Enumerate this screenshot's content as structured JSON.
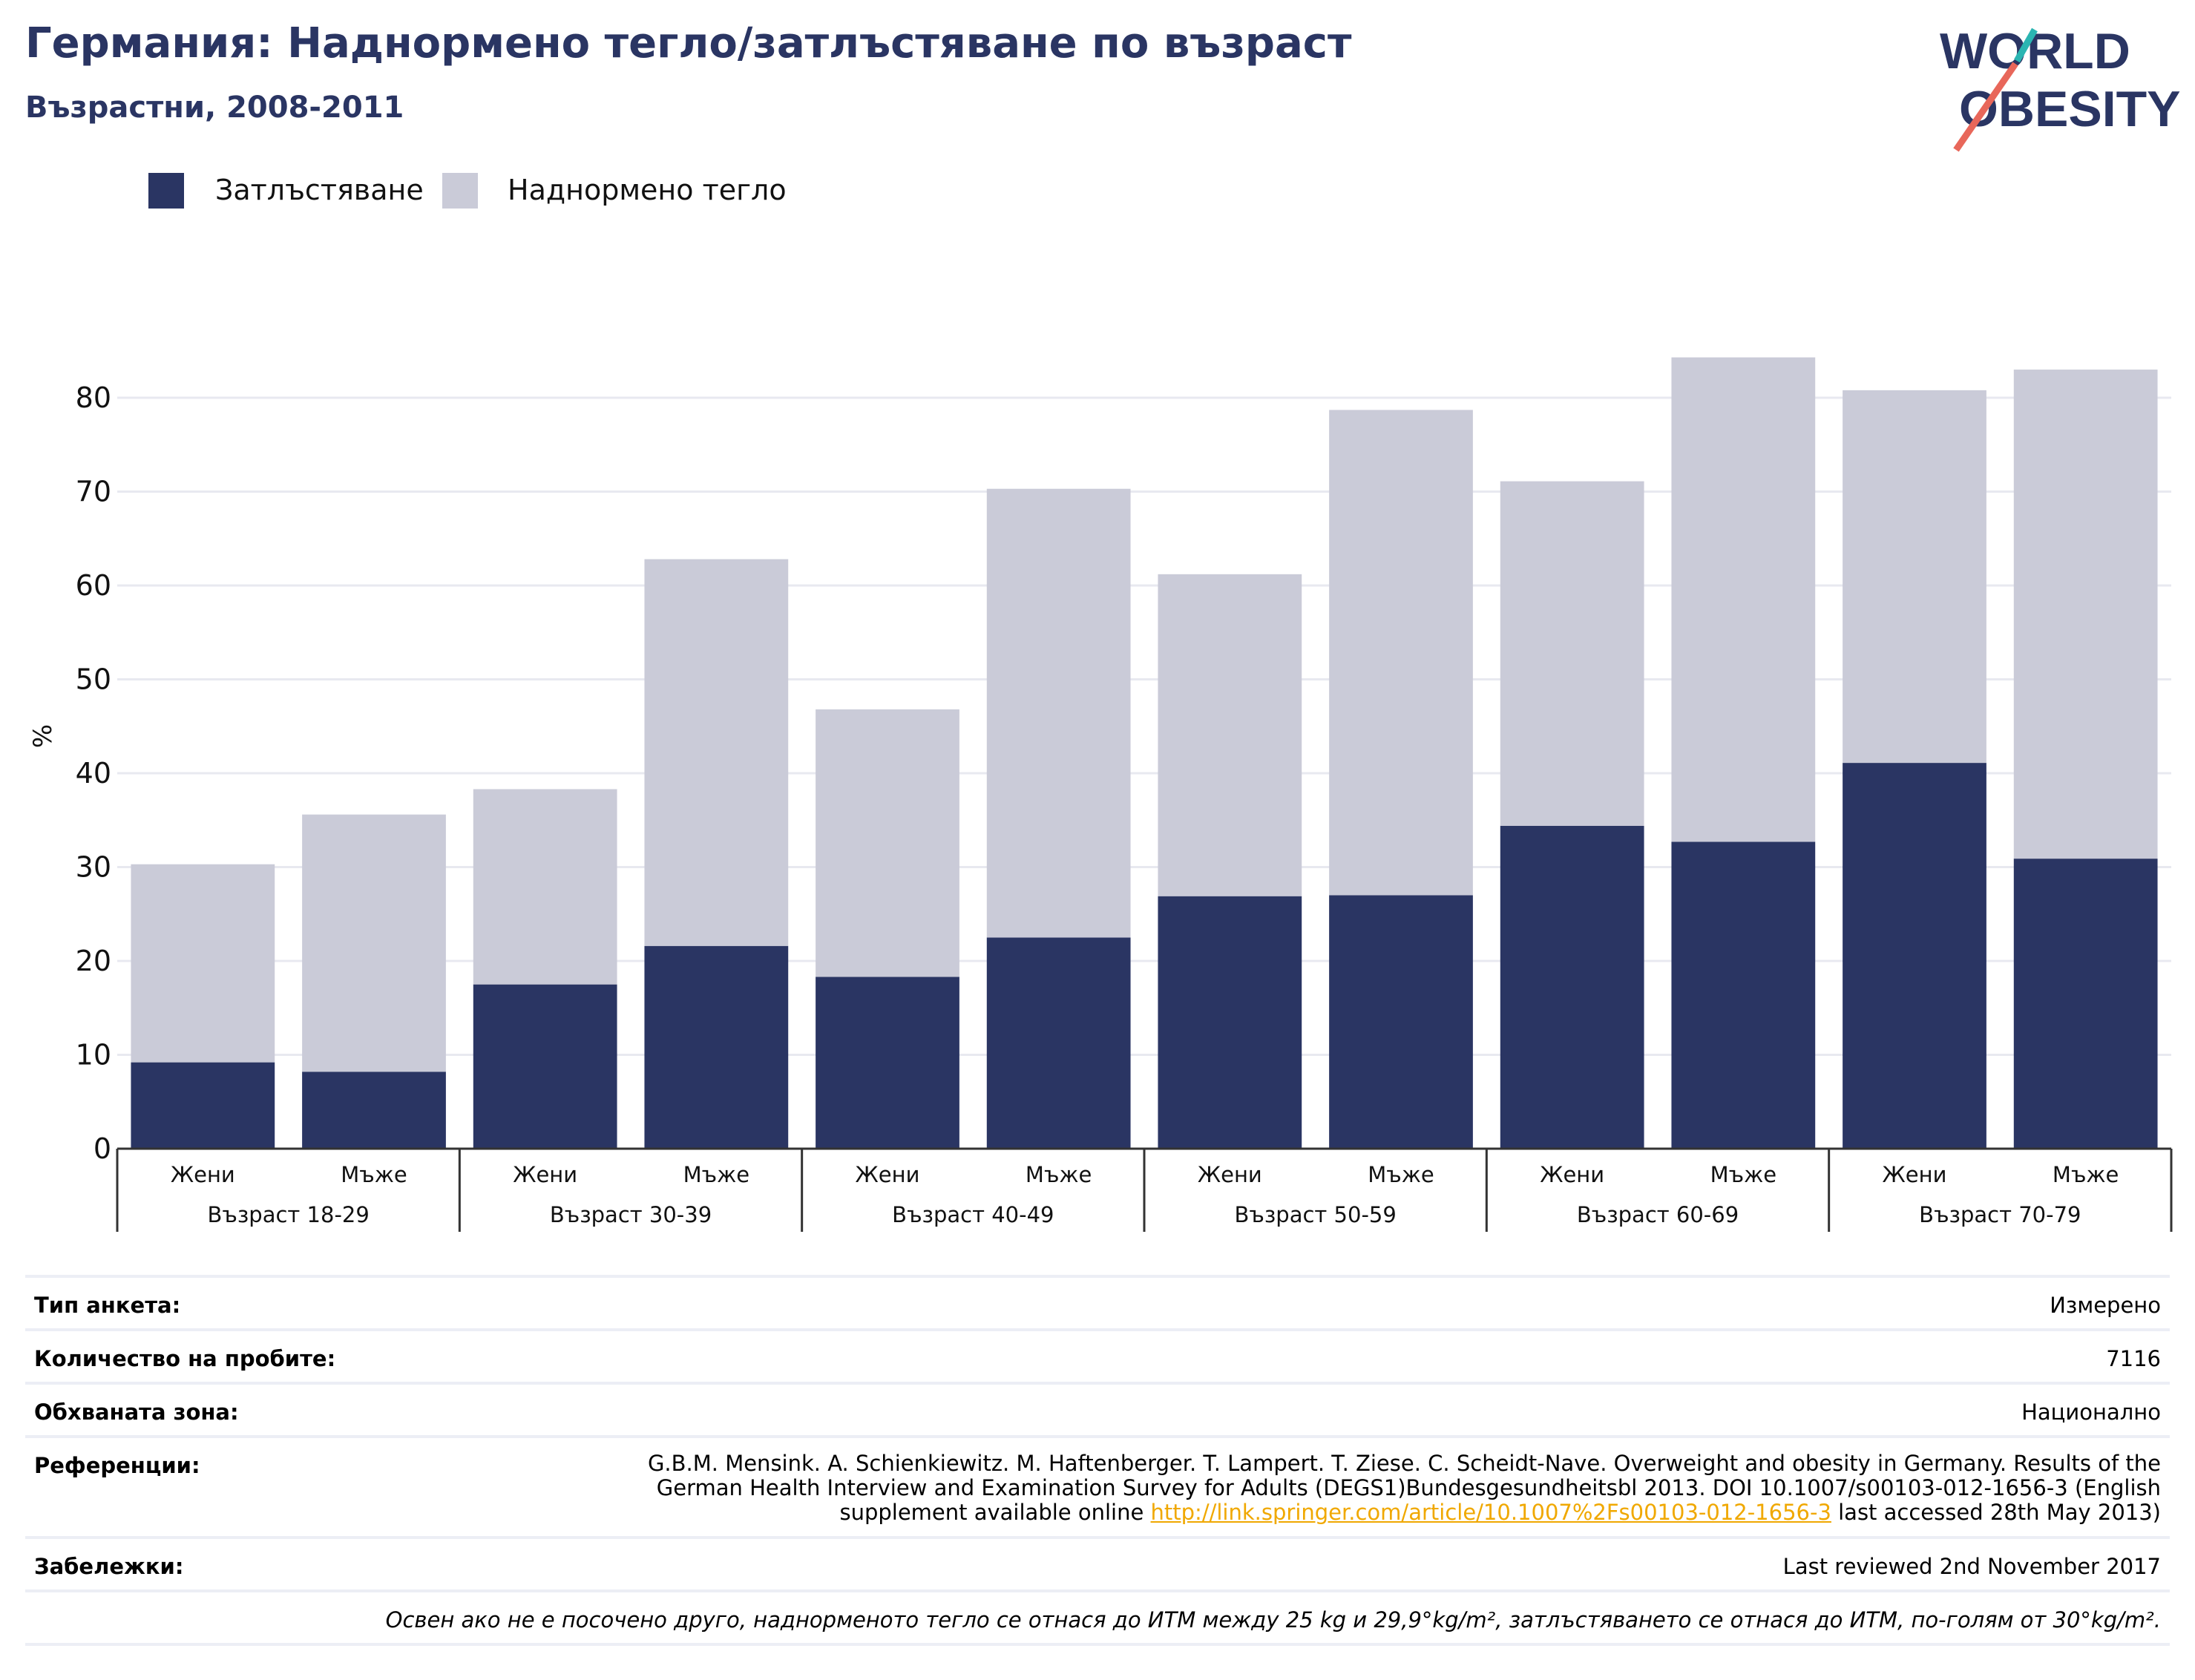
{
  "header": {
    "title": "Германия: Наднормено тегло/затлъстяване по възраст",
    "subtitle": "Възрастни, 2008-2011"
  },
  "logo": {
    "line1": "WORLD",
    "line2": "OBESITY",
    "colors": {
      "text": "#2a3563",
      "slash_teal": "#2bb5b2",
      "slash_coral": "#e8675a"
    }
  },
  "legend": [
    {
      "label": "Затлъстяване",
      "color": "#2a3563"
    },
    {
      "label": "Наднормено тегло",
      "color": "#cacbd8"
    }
  ],
  "chart_data": {
    "type": "bar",
    "stacked": true,
    "ylabel": "%",
    "ylim": [
      0,
      85
    ],
    "yticks": [
      0,
      10,
      20,
      30,
      40,
      50,
      60,
      70,
      80
    ],
    "grid": true,
    "legend_position": "top-left",
    "groups": [
      "Възраст 18-29",
      "Възраст 30-39",
      "Възраст 40-49",
      "Възраст 50-59",
      "Възраст 60-69",
      "Възраст 70-79"
    ],
    "categories": [
      "Жени",
      "Мъже",
      "Жени",
      "Мъже",
      "Жени",
      "Мъже",
      "Жени",
      "Мъже",
      "Жени",
      "Мъже",
      "Жени",
      "Мъже"
    ],
    "series": [
      {
        "name": "Затлъстяване",
        "color": "#2a3563",
        "values": [
          9.2,
          8.2,
          17.5,
          21.6,
          18.3,
          22.5,
          26.9,
          27.0,
          34.4,
          32.7,
          41.1,
          30.9
        ]
      },
      {
        "name": "Наднормено тегло",
        "color": "#cacbd8",
        "values": [
          21.1,
          27.4,
          20.8,
          41.2,
          28.5,
          47.8,
          34.3,
          51.7,
          36.7,
          51.6,
          39.7,
          52.1
        ]
      }
    ]
  },
  "info": {
    "survey_type_label": "Тип анкета:",
    "survey_type_value": "Измерено",
    "sample_size_label": "Количество на пробите:",
    "sample_size_value": "7116",
    "area_label": "Обхваната зона:",
    "area_value": "Национално",
    "references_label": "Референции:",
    "references_text": "G.B.M. Mensink. A. Schienkiewitz. M. Haftenberger. T. Lampert. T. Ziese. C. Scheidt-Nave. Overweight and obesity in Germany. Results of the German Health Interview and Examination Survey for Adults (DEGS1)Bundesgesundheitsbl 2013. DOI 10.1007/s00103-012-1656-3 (English supplement available online ",
    "references_link": "http://link.springer.com/article/10.1007%2Fs00103-012-1656-3",
    "references_suffix": " last accessed 28th May 2013)",
    "notes_label": "Забележки:",
    "notes_value": "Last reviewed 2nd November 2017",
    "footnote": "Освен ако не е посочено друго, наднорменото тегло се отнася до ИТМ между 25 kg и 29,9°kg/m², затлъстяването се отнася до ИТМ, по-голям от 30°kg/m²."
  }
}
